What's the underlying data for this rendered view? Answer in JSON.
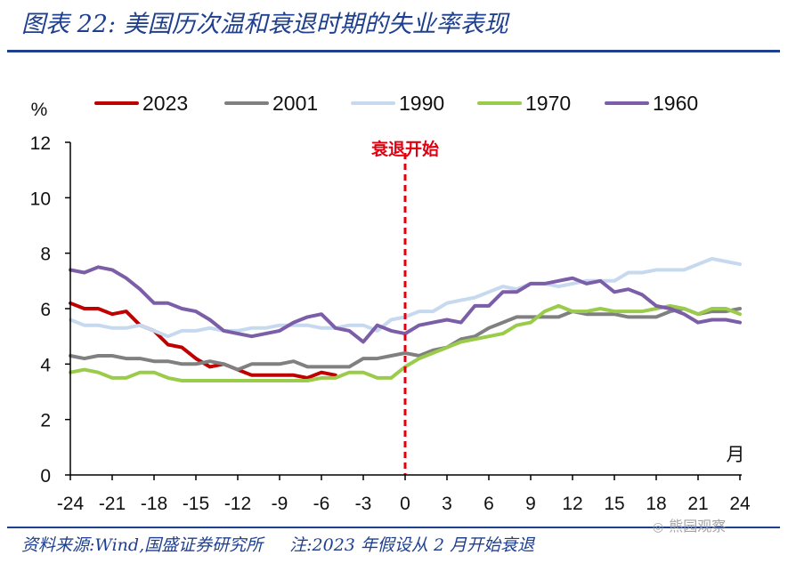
{
  "title": "图表 22:  美国历次温和衰退时期的失业率表现",
  "footer": {
    "source": "资料来源:Wind,国盛证券研究所",
    "note": "注:2023 年假设从 2 月开始衰退"
  },
  "watermark": "熊园观察",
  "chart_data": {
    "type": "line",
    "title": "美国历次温和衰退时期的失业率表现",
    "ylabel": "%",
    "xlabel": "月",
    "ylim": [
      0,
      12
    ],
    "xlim": [
      -24,
      24
    ],
    "yticks": [
      0,
      2,
      4,
      6,
      8,
      10,
      12
    ],
    "xticks": [
      -24,
      -21,
      -18,
      -15,
      -12,
      -9,
      -6,
      -3,
      0,
      3,
      6,
      9,
      12,
      15,
      18,
      21,
      24
    ],
    "grid": false,
    "legend_position": "top",
    "annotation": {
      "text": "衰退开始",
      "x": 0
    },
    "series": [
      {
        "name": "2023",
        "color": "#c00000",
        "x": [
          -24,
          -23,
          -22,
          -21,
          -20,
          -19,
          -18,
          -17,
          -16,
          -15,
          -14,
          -13,
          -12,
          -11,
          -10,
          -9,
          -8,
          -7,
          -6,
          -5
        ],
        "values": [
          6.2,
          6.0,
          6.0,
          5.8,
          5.9,
          5.4,
          5.2,
          4.7,
          4.6,
          4.2,
          3.9,
          4.0,
          3.8,
          3.6,
          3.6,
          3.6,
          3.6,
          3.5,
          3.7,
          3.6
        ]
      },
      {
        "name": "2001",
        "color": "#808080",
        "x": [
          -24,
          -23,
          -22,
          -21,
          -20,
          -19,
          -18,
          -17,
          -16,
          -15,
          -14,
          -13,
          -12,
          -11,
          -10,
          -9,
          -8,
          -7,
          -6,
          -5,
          -4,
          -3,
          -2,
          -1,
          0,
          1,
          2,
          3,
          4,
          5,
          6,
          7,
          8,
          9,
          10,
          11,
          12,
          13,
          14,
          15,
          16,
          17,
          18,
          19,
          20,
          21,
          22,
          23,
          24
        ],
        "values": [
          4.3,
          4.2,
          4.3,
          4.3,
          4.2,
          4.2,
          4.1,
          4.1,
          4.0,
          4.0,
          4.1,
          4.0,
          3.8,
          4.0,
          4.0,
          4.0,
          4.1,
          3.9,
          3.9,
          3.9,
          3.9,
          4.2,
          4.2,
          4.3,
          4.4,
          4.3,
          4.5,
          4.6,
          4.9,
          5.0,
          5.3,
          5.5,
          5.7,
          5.7,
          5.7,
          5.7,
          5.9,
          5.8,
          5.8,
          5.8,
          5.7,
          5.7,
          5.7,
          5.9,
          6.0,
          5.8,
          5.9,
          5.9,
          6.0
        ]
      },
      {
        "name": "1990",
        "color": "#c6d9ee",
        "x": [
          -24,
          -23,
          -22,
          -21,
          -20,
          -19,
          -18,
          -17,
          -16,
          -15,
          -14,
          -13,
          -12,
          -11,
          -10,
          -9,
          -8,
          -7,
          -6,
          -5,
          -4,
          -3,
          -2,
          -1,
          0,
          1,
          2,
          3,
          4,
          5,
          6,
          7,
          8,
          9,
          10,
          11,
          12,
          13,
          14,
          15,
          16,
          17,
          18,
          19,
          20,
          21,
          22,
          23,
          24
        ],
        "values": [
          5.6,
          5.4,
          5.4,
          5.3,
          5.3,
          5.4,
          5.2,
          5.0,
          5.2,
          5.2,
          5.3,
          5.2,
          5.2,
          5.3,
          5.3,
          5.4,
          5.4,
          5.4,
          5.3,
          5.3,
          5.4,
          5.4,
          5.2,
          5.6,
          5.7,
          5.9,
          5.9,
          6.2,
          6.3,
          6.4,
          6.6,
          6.8,
          6.7,
          6.9,
          6.9,
          6.8,
          6.9,
          7.0,
          7.0,
          7.0,
          7.3,
          7.3,
          7.4,
          7.4,
          7.4,
          7.6,
          7.8,
          7.7,
          7.6
        ]
      },
      {
        "name": "1970",
        "color": "#9acb4b",
        "x": [
          -24,
          -23,
          -22,
          -21,
          -20,
          -19,
          -18,
          -17,
          -16,
          -15,
          -14,
          -13,
          -12,
          -11,
          -10,
          -9,
          -8,
          -7,
          -6,
          -5,
          -4,
          -3,
          -2,
          -1,
          0,
          1,
          2,
          3,
          4,
          5,
          6,
          7,
          8,
          9,
          10,
          11,
          12,
          13,
          14,
          15,
          16,
          17,
          18,
          19,
          20,
          21,
          22,
          23,
          24
        ],
        "values": [
          3.7,
          3.8,
          3.7,
          3.5,
          3.5,
          3.7,
          3.7,
          3.5,
          3.4,
          3.4,
          3.4,
          3.4,
          3.4,
          3.4,
          3.4,
          3.4,
          3.4,
          3.4,
          3.5,
          3.5,
          3.7,
          3.7,
          3.5,
          3.5,
          3.9,
          4.2,
          4.4,
          4.6,
          4.8,
          4.9,
          5.0,
          5.1,
          5.4,
          5.5,
          5.9,
          6.1,
          5.9,
          5.9,
          6.0,
          5.9,
          5.9,
          5.9,
          6.0,
          6.1,
          6.0,
          5.8,
          6.0,
          6.0,
          5.8
        ]
      },
      {
        "name": "1960",
        "color": "#7b5ea7",
        "x": [
          -24,
          -23,
          -22,
          -21,
          -20,
          -19,
          -18,
          -17,
          -16,
          -15,
          -14,
          -13,
          -12,
          -11,
          -10,
          -9,
          -8,
          -7,
          -6,
          -5,
          -4,
          -3,
          -2,
          -1,
          0,
          1,
          2,
          3,
          4,
          5,
          6,
          7,
          8,
          9,
          10,
          11,
          12,
          13,
          14,
          15,
          16,
          17,
          18,
          19,
          20,
          21,
          22,
          23,
          24
        ],
        "values": [
          7.4,
          7.3,
          7.5,
          7.4,
          7.1,
          6.7,
          6.2,
          6.2,
          6.0,
          5.9,
          5.6,
          5.2,
          5.1,
          5.0,
          5.1,
          5.2,
          5.5,
          5.7,
          5.8,
          5.3,
          5.2,
          4.8,
          5.4,
          5.2,
          5.1,
          5.4,
          5.5,
          5.6,
          5.5,
          6.1,
          6.1,
          6.6,
          6.6,
          6.9,
          6.9,
          7.0,
          7.1,
          6.9,
          7.0,
          6.6,
          6.7,
          6.5,
          6.1,
          6.0,
          5.8,
          5.5,
          5.6,
          5.6,
          5.5
        ]
      }
    ]
  }
}
